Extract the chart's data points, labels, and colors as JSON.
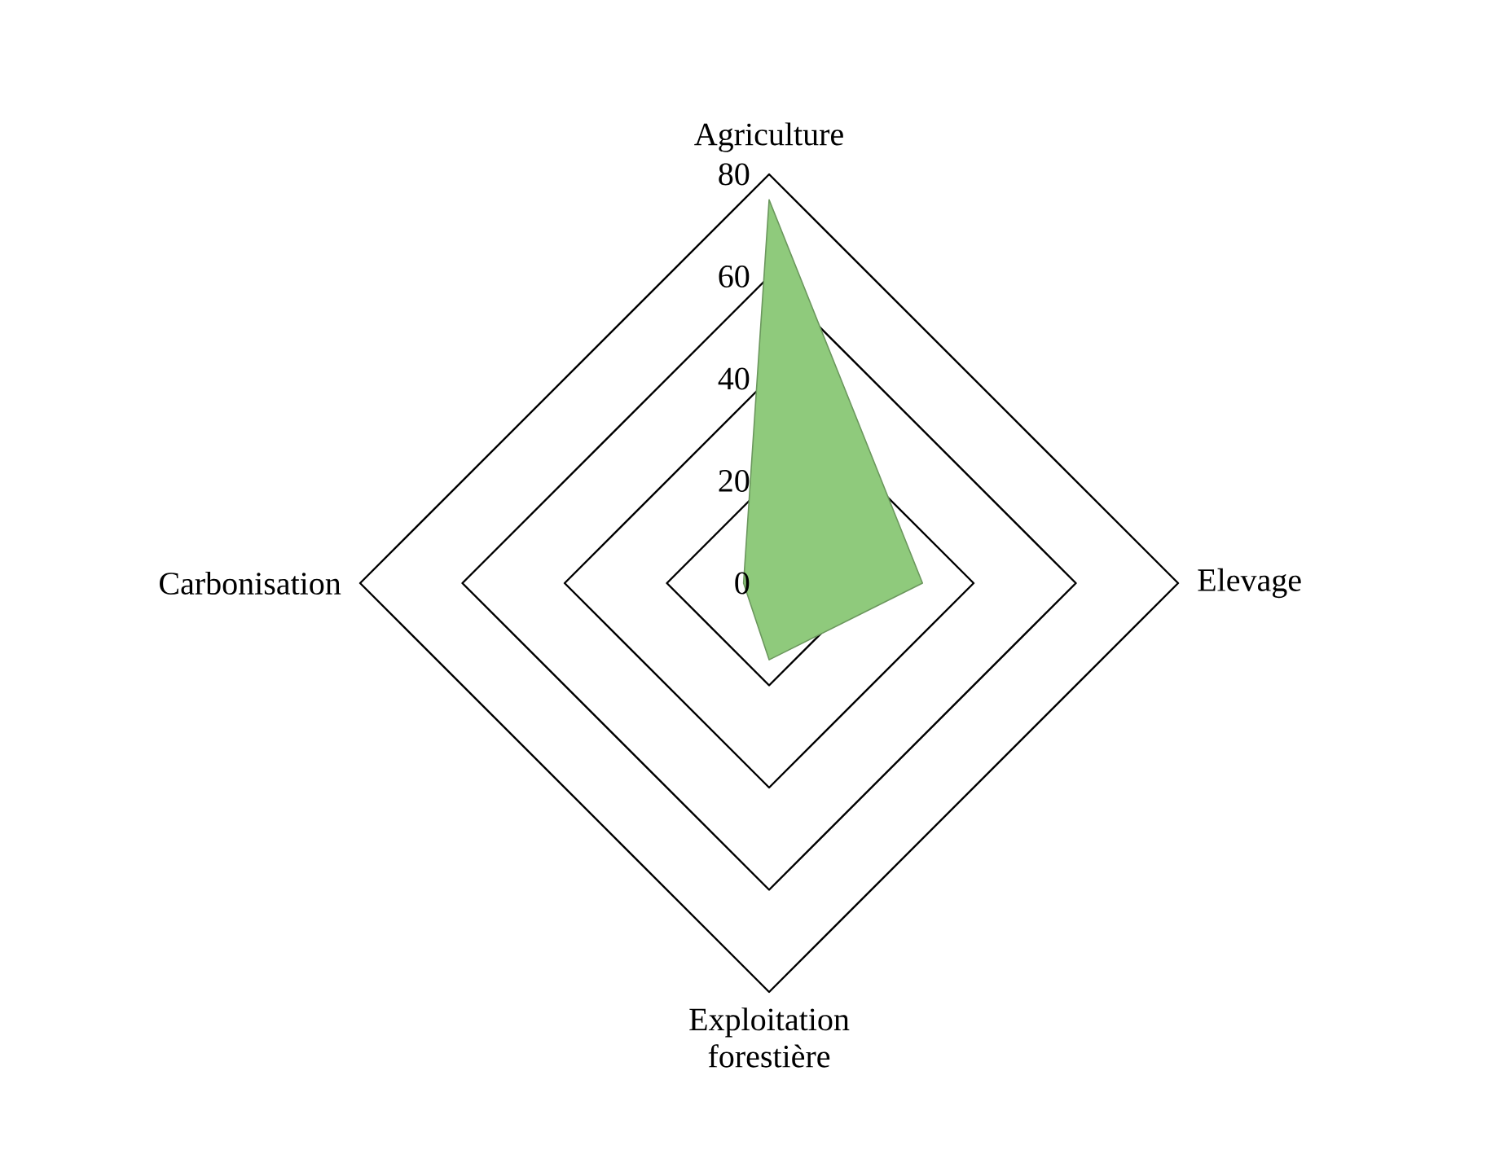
{
  "chart_data": {
    "type": "radar",
    "categories": [
      "Agriculture",
      "Elevage",
      "Exploitation forestière",
      "Carbonisation"
    ],
    "series": [
      {
        "color": "#8fca7c",
        "values": [
          75,
          30,
          15,
          5
        ]
      }
    ],
    "ylim": [
      0,
      80
    ],
    "yticks": [
      0,
      20,
      40,
      60,
      80
    ]
  }
}
